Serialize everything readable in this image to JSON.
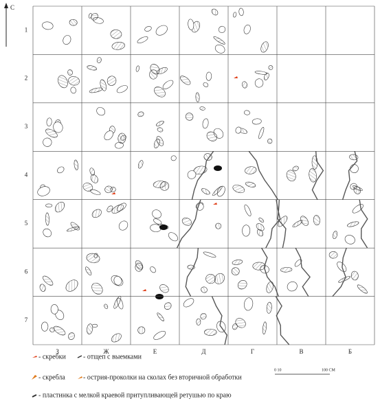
{
  "north": "С",
  "rows": [
    "1",
    "2",
    "3",
    "4",
    "5",
    "6",
    "7"
  ],
  "columns": [
    "З",
    "Ж",
    "Е",
    "Д",
    "Г",
    "В",
    "Б"
  ],
  "legend": [
    {
      "label": "- скребки"
    },
    {
      "label": "- отщеп с выемками"
    },
    {
      "label": "- скребла"
    },
    {
      "label": "- острия-проколки на сколах без вторичной обработки"
    },
    {
      "label": "- пластинка с мелкой краевой притупливающей ретушью по краю"
    }
  ],
  "scale": {
    "start": "0 10",
    "end": "100 СМ"
  }
}
